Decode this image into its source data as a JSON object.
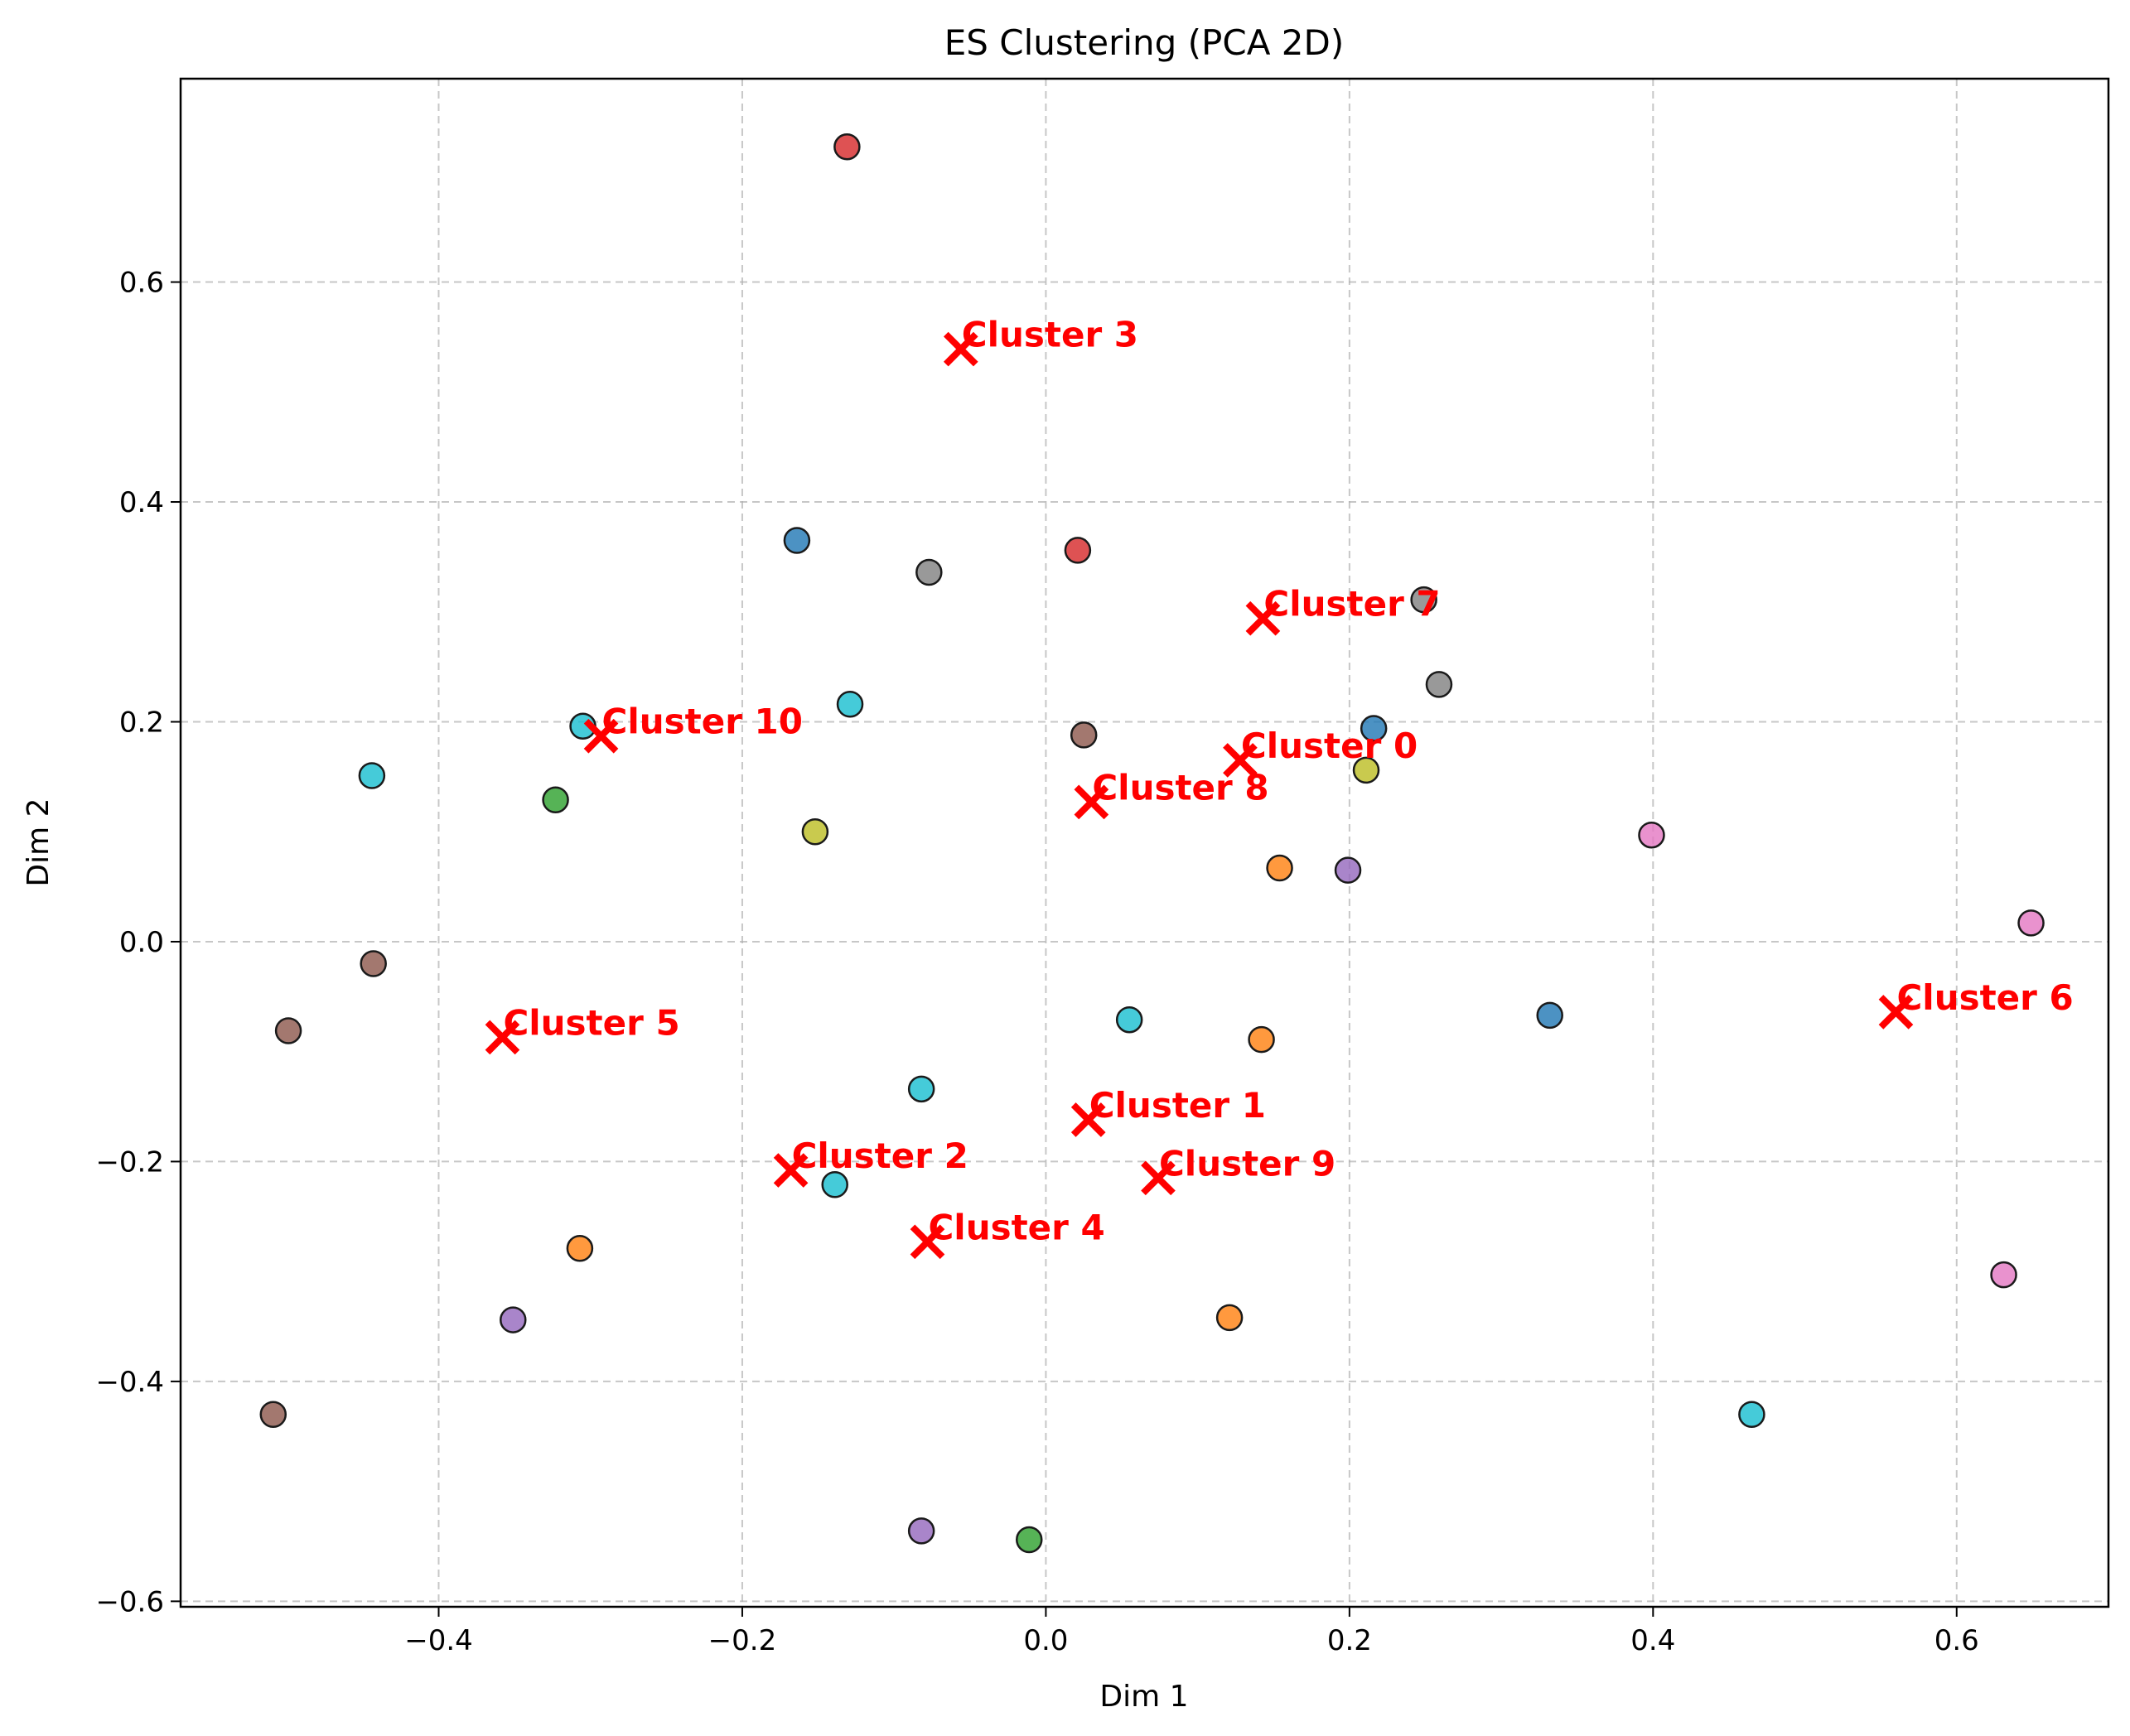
{
  "chart_data": {
    "type": "scatter",
    "title": "ES Clustering (PCA 2D)",
    "xlabel": "Dim 1",
    "ylabel": "Dim 2",
    "xlim": [
      -0.57,
      0.7
    ],
    "ylim": [
      -0.605,
      0.785
    ],
    "xticks": [
      -0.4,
      -0.2,
      0.0,
      0.2,
      0.4,
      0.6
    ],
    "yticks": [
      -0.6,
      -0.4,
      -0.2,
      0.0,
      0.2,
      0.4,
      0.6
    ],
    "xtick_labels": [
      "−0.4",
      "−0.2",
      "0.0",
      "0.2",
      "0.4",
      "0.6"
    ],
    "ytick_labels": [
      "−0.6",
      "−0.4",
      "−0.2",
      "0.0",
      "0.2",
      "0.4",
      "0.6"
    ],
    "grid": true,
    "points": [
      {
        "x": -0.131,
        "y": 0.723,
        "color": "#d62728"
      },
      {
        "x": -0.164,
        "y": 0.365,
        "color": "#1f77b4"
      },
      {
        "x": -0.077,
        "y": 0.336,
        "color": "#7f7f7f"
      },
      {
        "x": 0.021,
        "y": 0.356,
        "color": "#d62728"
      },
      {
        "x": 0.249,
        "y": 0.311,
        "color": "#7f7f7f"
      },
      {
        "x": 0.259,
        "y": 0.234,
        "color": "#7f7f7f"
      },
      {
        "x": -0.305,
        "y": 0.196,
        "color": "#17becf"
      },
      {
        "x": -0.129,
        "y": 0.216,
        "color": "#17becf"
      },
      {
        "x": 0.025,
        "y": 0.188,
        "color": "#8c564b"
      },
      {
        "x": 0.216,
        "y": 0.194,
        "color": "#1f77b4"
      },
      {
        "x": 0.211,
        "y": 0.156,
        "color": "#bcbd22"
      },
      {
        "x": -0.444,
        "y": 0.151,
        "color": "#17becf"
      },
      {
        "x": -0.323,
        "y": 0.129,
        "color": "#2ca02c"
      },
      {
        "x": -0.152,
        "y": 0.1,
        "color": "#bcbd22"
      },
      {
        "x": 0.154,
        "y": 0.067,
        "color": "#ff7f0e"
      },
      {
        "x": 0.199,
        "y": 0.065,
        "color": "#9467bd"
      },
      {
        "x": 0.399,
        "y": 0.097,
        "color": "#e377c2"
      },
      {
        "x": 0.649,
        "y": 0.017,
        "color": "#e377c2"
      },
      {
        "x": -0.443,
        "y": -0.02,
        "color": "#8c564b"
      },
      {
        "x": -0.499,
        "y": -0.081,
        "color": "#8c564b"
      },
      {
        "x": 0.055,
        "y": -0.071,
        "color": "#17becf"
      },
      {
        "x": 0.142,
        "y": -0.089,
        "color": "#ff7f0e"
      },
      {
        "x": 0.332,
        "y": -0.067,
        "color": "#1f77b4"
      },
      {
        "x": -0.082,
        "y": -0.134,
        "color": "#17becf"
      },
      {
        "x": -0.139,
        "y": -0.221,
        "color": "#17becf"
      },
      {
        "x": -0.307,
        "y": -0.279,
        "color": "#ff7f0e"
      },
      {
        "x": -0.351,
        "y": -0.344,
        "color": "#9467bd"
      },
      {
        "x": 0.121,
        "y": -0.342,
        "color": "#ff7f0e"
      },
      {
        "x": 0.631,
        "y": -0.303,
        "color": "#e377c2"
      },
      {
        "x": -0.509,
        "y": -0.43,
        "color": "#8c564b"
      },
      {
        "x": 0.465,
        "y": -0.43,
        "color": "#17becf"
      },
      {
        "x": -0.082,
        "y": -0.536,
        "color": "#9467bd"
      },
      {
        "x": -0.011,
        "y": -0.544,
        "color": "#2ca02c"
      }
    ],
    "centroids": [
      {
        "label": "Cluster 0",
        "x": 0.128,
        "y": 0.165
      },
      {
        "label": "Cluster 1",
        "x": 0.028,
        "y": -0.162
      },
      {
        "label": "Cluster 2",
        "x": -0.168,
        "y": -0.208
      },
      {
        "label": "Cluster 3",
        "x": -0.056,
        "y": 0.539
      },
      {
        "label": "Cluster 4",
        "x": -0.078,
        "y": -0.273
      },
      {
        "label": "Cluster 5",
        "x": -0.358,
        "y": -0.087
      },
      {
        "label": "Cluster 6",
        "x": 0.56,
        "y": -0.064
      },
      {
        "label": "Cluster 7",
        "x": 0.143,
        "y": 0.294
      },
      {
        "label": "Cluster 8",
        "x": 0.03,
        "y": 0.127
      },
      {
        "label": "Cluster 9",
        "x": 0.074,
        "y": -0.215
      },
      {
        "label": "Cluster 10",
        "x": -0.293,
        "y": 0.187
      }
    ],
    "centroid_color": "#ff0000"
  }
}
